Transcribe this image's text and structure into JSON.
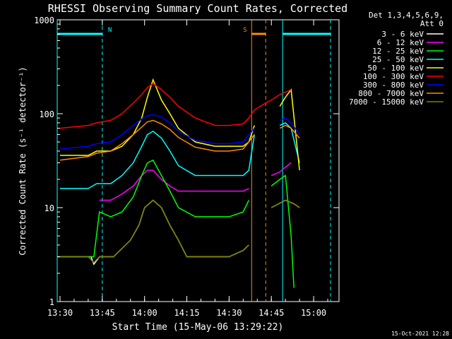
{
  "chart_data": {
    "type": "line",
    "title": "RHESSI Observing Summary Count Rates, Corrected",
    "xlabel": "Start Time (15-May-06 13:29:22)",
    "ylabel": "Corrected Count Rate (s⁻¹ detector⁻¹)",
    "y_scale": "log",
    "ylim": [
      1,
      1000
    ],
    "xlim": [
      "13:29",
      "15:09"
    ],
    "x_ticks": [
      "13:30",
      "13:45",
      "14:00",
      "14:15",
      "14:30",
      "14:45",
      "15:00"
    ],
    "y_ticks": [
      "1",
      "10",
      "100",
      "1000"
    ],
    "legend_header": [
      "Det 1,3,4,5,6,9,",
      "Att 0"
    ],
    "legend_position": "right",
    "footer": "15-Oct-2021 12:28",
    "flags": [
      {
        "label": "N",
        "color": "#00ffff",
        "segments": [
          [
            "13:29",
            "13:45"
          ],
          [
            "14:49",
            "15:06"
          ]
        ]
      },
      {
        "label": "S",
        "color": "#ff8c00",
        "segments": [
          [
            "14:38",
            "14:43"
          ]
        ]
      }
    ],
    "series": [
      {
        "name": "3 - 6 keV",
        "color": "#ffffff",
        "x": [
          "13:30",
          "13:41",
          "13:42",
          "13:44",
          "13:49",
          "13:55",
          "13:58",
          "14:00",
          "14:03",
          "14:06",
          "14:09",
          "14:12",
          "14:15",
          "14:20",
          "14:25",
          "14:30",
          "14:35",
          "14:37",
          "14:39",
          "14:45",
          "14:50",
          "14:53",
          "14:55"
        ],
        "values": [
          3,
          3,
          2.5,
          3,
          3,
          4.5,
          6.5,
          10,
          12,
          10,
          6.5,
          4.5,
          3,
          3,
          3,
          3,
          3.5,
          4,
          null,
          10,
          12,
          11,
          10
        ]
      },
      {
        "name": "6 - 12 keV",
        "color": "#ff00ff",
        "x": [
          "13:30",
          "13:40",
          "13:43",
          "13:44",
          "13:48",
          "13:52",
          "13:56",
          "13:59",
          "14:01",
          "14:03",
          "14:06",
          "14:09",
          "14:12",
          "14:18",
          "14:25",
          "14:30",
          "14:35",
          "14:37",
          "14:39",
          "14:45",
          "14:48",
          "14:50",
          "14:52"
        ],
        "values": [
          null,
          null,
          null,
          12,
          12,
          14,
          17,
          22,
          25,
          25,
          20,
          17,
          15,
          15,
          15,
          15,
          15,
          16,
          null,
          22,
          24,
          27,
          30
        ]
      },
      {
        "name": "12 - 25 keV",
        "color": "#00ff00",
        "x": [
          "13:29",
          "13:40",
          "13:42",
          "13:44",
          "13:48",
          "13:52",
          "13:56",
          "13:59",
          "14:01",
          "14:03",
          "14:06",
          "14:09",
          "14:12",
          "14:18",
          "14:25",
          "14:30",
          "14:35",
          "14:37",
          "14:39",
          "14:45",
          "14:48",
          "14:50",
          "14:52",
          "14:53"
        ],
        "values": [
          3,
          3,
          3,
          9,
          8,
          9,
          13,
          22,
          30,
          32,
          22,
          15,
          10,
          8,
          8,
          8,
          9,
          12,
          null,
          17,
          20,
          22,
          5,
          1.4
        ]
      },
      {
        "name": "25 - 50 keV",
        "color": "#00ffff",
        "x": [
          "13:30",
          "13:40",
          "13:43",
          "13:48",
          "13:52",
          "13:56",
          "13:59",
          "14:01",
          "14:03",
          "14:06",
          "14:09",
          "14:12",
          "14:18",
          "14:25",
          "14:30",
          "14:35",
          "14:37",
          "14:39",
          "14:45",
          "14:48",
          "14:50",
          "14:52",
          "14:55"
        ],
        "values": [
          16,
          16,
          18,
          18,
          22,
          30,
          45,
          60,
          65,
          55,
          40,
          28,
          22,
          22,
          22,
          22,
          25,
          60,
          null,
          75,
          80,
          70,
          30
        ]
      },
      {
        "name": "50 - 100 keV",
        "color": "#ffff00",
        "x": [
          "13:30",
          "13:40",
          "13:43",
          "13:48",
          "13:52",
          "13:56",
          "13:59",
          "14:01",
          "14:03",
          "14:06",
          "14:09",
          "14:12",
          "14:18",
          "14:25",
          "14:30",
          "14:35",
          "14:37",
          "14:39",
          "14:45",
          "14:48",
          "14:50",
          "14:52",
          "14:55"
        ],
        "values": [
          36,
          36,
          40,
          40,
          45,
          60,
          90,
          150,
          230,
          140,
          100,
          70,
          50,
          45,
          45,
          45,
          50,
          75,
          null,
          120,
          150,
          180,
          25
        ]
      },
      {
        "name": "100 - 300 keV",
        "color": "#ff0000",
        "x": [
          "13:30",
          "13:40",
          "13:43",
          "13:48",
          "13:52",
          "13:56",
          "13:59",
          "14:01",
          "14:03",
          "14:06",
          "14:09",
          "14:12",
          "14:18",
          "14:25",
          "14:30",
          "14:35",
          "14:37",
          "14:39",
          "14:43",
          "14:45",
          "14:48",
          "14:50",
          "14:52"
        ],
        "values": [
          70,
          75,
          80,
          85,
          100,
          130,
          160,
          190,
          210,
          180,
          150,
          120,
          90,
          75,
          75,
          78,
          90,
          110,
          130,
          140,
          160,
          170,
          180
        ]
      },
      {
        "name": "300 - 800 keV",
        "color": "#0000ff",
        "x": [
          "13:30",
          "13:40",
          "13:43",
          "13:48",
          "13:52",
          "13:56",
          "13:59",
          "14:01",
          "14:03",
          "14:06",
          "14:09",
          "14:12",
          "14:18",
          "14:25",
          "14:30",
          "14:35",
          "14:37",
          "14:39",
          "14:45",
          "14:48",
          "14:50",
          "14:52",
          "14:55"
        ],
        "values": [
          42,
          45,
          48,
          50,
          60,
          75,
          88,
          95,
          98,
          92,
          80,
          65,
          52,
          48,
          48,
          50,
          60,
          70,
          null,
          85,
          90,
          80,
          60
        ]
      },
      {
        "name": "800 - 7000 keV",
        "color": "#ff8c00",
        "x": [
          "13:30",
          "13:40",
          "13:43",
          "13:48",
          "13:52",
          "13:56",
          "13:59",
          "14:01",
          "14:03",
          "14:06",
          "14:09",
          "14:12",
          "14:18",
          "14:25",
          "14:30",
          "14:35",
          "14:37",
          "14:39",
          "14:45",
          "14:48",
          "14:50",
          "14:52",
          "14:55"
        ],
        "values": [
          32,
          35,
          38,
          40,
          48,
          60,
          72,
          82,
          85,
          78,
          68,
          56,
          44,
          40,
          40,
          42,
          50,
          60,
          null,
          70,
          75,
          70,
          55
        ]
      },
      {
        "name": "7000 - 15000 keV",
        "color": "#808000",
        "x": [
          "13:29",
          "13:40",
          "13:42",
          "13:44",
          "13:49",
          "13:55",
          "13:58",
          "14:00",
          "14:03",
          "14:06",
          "14:09",
          "14:12",
          "14:15",
          "14:20",
          "14:25",
          "14:30",
          "14:35",
          "14:37",
          "14:39",
          "14:45",
          "14:50",
          "14:53",
          "14:55"
        ],
        "values": [
          3,
          3,
          2.6,
          3,
          3,
          4.5,
          6.5,
          10,
          12,
          10,
          6.5,
          4.5,
          3,
          3,
          3,
          3,
          3.5,
          4,
          null,
          10,
          12,
          11,
          10
        ]
      }
    ]
  }
}
